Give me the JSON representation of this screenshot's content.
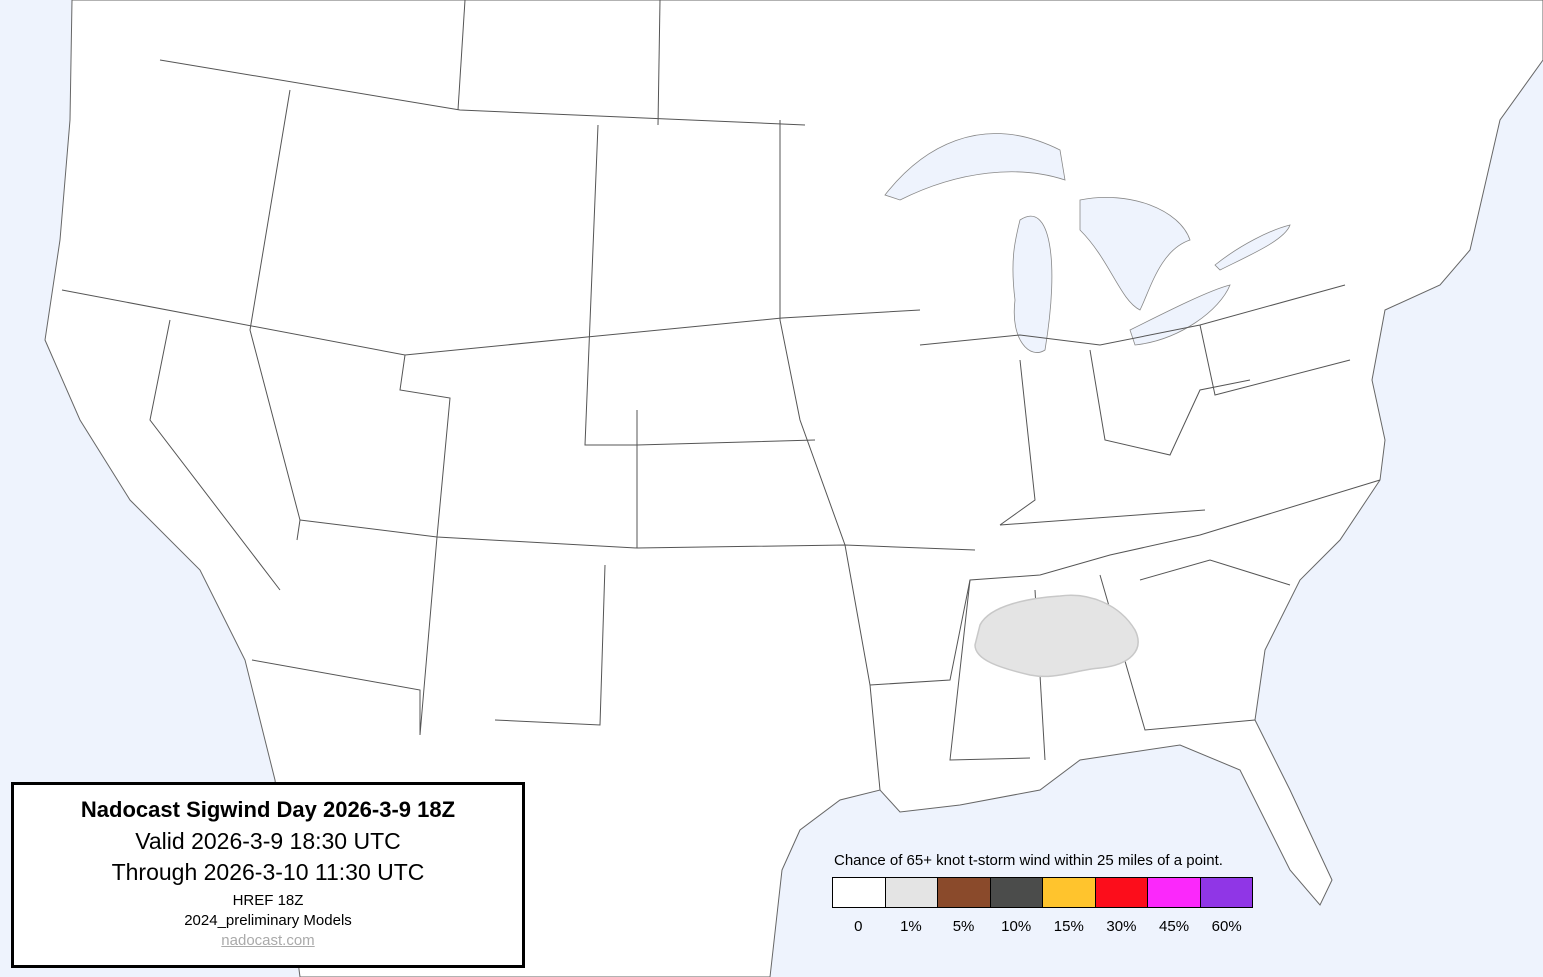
{
  "map": {
    "ocean_color": "#eef3fd",
    "land_color": "#ffffff",
    "border_color": "#555555",
    "forecast_areas": [
      {
        "level": "1%",
        "color": "#e4e4e4",
        "region": "Mississippi / Alabama / Georgia"
      }
    ]
  },
  "info_box": {
    "title": "Nadocast Sigwind Day 2026-3-9 18Z",
    "valid": "Valid 2026-3-9 18:30 UTC",
    "through": "Through 2026-3-10 11:30 UTC",
    "model": "HREF 18Z",
    "models_version": "2024_preliminary Models",
    "link": "nadocast.com"
  },
  "legend": {
    "caption": "Chance of 65+ knot t-storm wind within 25 miles of a point.",
    "items": [
      {
        "label": "0",
        "color": "#ffffff"
      },
      {
        "label": "1%",
        "color": "#e4e4e4"
      },
      {
        "label": "5%",
        "color": "#8a4a2b"
      },
      {
        "label": "10%",
        "color": "#4b4c4b"
      },
      {
        "label": "15%",
        "color": "#ffc42d"
      },
      {
        "label": "30%",
        "color": "#fc0d1b"
      },
      {
        "label": "45%",
        "color": "#fb28fb"
      },
      {
        "label": "60%",
        "color": "#9036e6"
      }
    ]
  }
}
